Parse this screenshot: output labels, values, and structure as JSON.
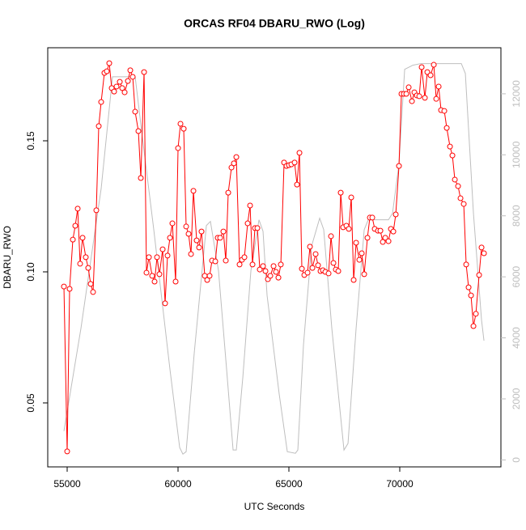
{
  "chart_data": {
    "type": "line",
    "title": "ORCAS RF04 DBARU_RWO (Log)",
    "x_label": "UTC Seconds",
    "y_label": "DBARU_RWO",
    "xlim": [
      54124,
      74562
    ],
    "xticks": [
      55000,
      60000,
      65000,
      70000
    ],
    "ylim": [
      0.0256,
      0.1855
    ],
    "yticks": [
      {
        "value": 0.05,
        "label": "0.05"
      },
      {
        "value": 0.1,
        "label": "0.10"
      },
      {
        "value": 0.15,
        "label": "0.15"
      }
    ],
    "y2lim": [
      -229,
      13509
    ],
    "y2ticks": [
      0,
      2000,
      4000,
      6000,
      8000,
      10000,
      12000
    ],
    "y2_color": "#bebebe",
    "series": [
      {
        "color": "#ff0000",
        "markers": true,
        "x": [
          54854,
          55000,
          55110,
          55256,
          55365,
          55475,
          55584,
          55694,
          55840,
          55949,
          56059,
          56168,
          56314,
          56424,
          56533,
          56679,
          56789,
          56898,
          57008,
          57117,
          57227,
          57373,
          57482,
          57592,
          57738,
          57847,
          57957,
          58066,
          58212,
          58322,
          58468,
          58577,
          58687,
          58833,
          58942,
          59052,
          59161,
          59307,
          59417,
          59526,
          59636,
          59745,
          59891,
          60001,
          60110,
          60256,
          60366,
          60475,
          60585,
          60694,
          60840,
          60950,
          61059,
          61205,
          61315,
          61424,
          61534,
          61680,
          61789,
          61899,
          62045,
          62154,
          62264,
          62410,
          62519,
          62629,
          62775,
          62884,
          62994,
          63140,
          63249,
          63359,
          63468,
          63578,
          63687,
          63833,
          63943,
          64052,
          64162,
          64308,
          64417,
          64527,
          64636,
          64782,
          64892,
          65001,
          65111,
          65257,
          65366,
          65476,
          65585,
          65695,
          65841,
          65950,
          66060,
          66206,
          66315,
          66425,
          66534,
          66644,
          66790,
          66899,
          67009,
          67118,
          67228,
          67337,
          67447,
          67593,
          67702,
          67812,
          67921,
          68031,
          68177,
          68286,
          68396,
          68542,
          68651,
          68761,
          68870,
          69016,
          69126,
          69235,
          69345,
          69491,
          69600,
          69710,
          69819,
          69965,
          70075,
          70184,
          70294,
          70403,
          70549,
          70659,
          70768,
          70878,
          70987,
          71133,
          71243,
          71389,
          71535,
          71644,
          71754,
          71863,
          72009,
          72119,
          72265,
          72374,
          72484,
          72630,
          72739,
          72885,
          72995,
          73104,
          73214,
          73323,
          73433,
          73579,
          73688,
          73798
        ],
        "values": [
          0.0944,
          0.0315,
          0.0935,
          0.1123,
          0.1176,
          0.1241,
          0.1031,
          0.113,
          0.1056,
          0.1015,
          0.0954,
          0.0923,
          0.1235,
          0.1556,
          0.1648,
          0.1759,
          0.1765,
          0.1796,
          0.1701,
          0.1688,
          0.1707,
          0.1725,
          0.1701,
          0.1685,
          0.1728,
          0.1769,
          0.1744,
          0.1611,
          0.1537,
          0.1358,
          0.1762,
          0.0997,
          0.1056,
          0.0985,
          0.0963,
          0.1056,
          0.0991,
          0.1086,
          0.088,
          0.1062,
          0.113,
          0.1185,
          0.0963,
          0.1472,
          0.1565,
          0.1546,
          0.1173,
          0.1145,
          0.1068,
          0.1309,
          0.112,
          0.1093,
          0.1154,
          0.0985,
          0.0969,
          0.0985,
          0.1043,
          0.104,
          0.113,
          0.113,
          0.1154,
          0.1043,
          0.1302,
          0.1398,
          0.1414,
          0.1438,
          0.1028,
          0.1046,
          0.1056,
          0.1185,
          0.1253,
          0.1028,
          0.1167,
          0.1167,
          0.1009,
          0.1022,
          0.1003,
          0.0972,
          0.0985,
          0.1022,
          0.1,
          0.0978,
          0.1028,
          0.1417,
          0.1404,
          0.1407,
          0.141,
          0.1417,
          0.1333,
          0.1454,
          0.1012,
          0.0988,
          0.0997,
          0.1096,
          0.1015,
          0.1068,
          0.1025,
          0.1003,
          0.1006,
          0.1,
          0.0994,
          0.1136,
          0.1034,
          0.1009,
          0.1003,
          0.1302,
          0.117,
          0.1176,
          0.1164,
          0.1284,
          0.0969,
          0.1111,
          0.1046,
          0.1071,
          0.0991,
          0.113,
          0.1207,
          0.1207,
          0.1164,
          0.1157,
          0.1157,
          0.1114,
          0.113,
          0.1117,
          0.1164,
          0.1154,
          0.1219,
          0.1404,
          0.1679,
          0.1679,
          0.1679,
          0.1704,
          0.1651,
          0.1685,
          0.1673,
          0.167,
          0.1781,
          0.1664,
          0.1762,
          0.175,
          0.179,
          0.166,
          0.1707,
          0.1617,
          0.1614,
          0.1549,
          0.1478,
          0.1444,
          0.1352,
          0.1327,
          0.1281,
          0.1259,
          0.1028,
          0.0941,
          0.091,
          0.0793,
          0.084,
          0.0988,
          0.1093,
          0.1071
        ]
      },
      {
        "color": "#bebebe",
        "axis": "y2",
        "markers": false,
        "x": [
          54854,
          55621,
          56533,
          57045,
          58066,
          58358,
          58906,
          59636,
          60074,
          60220,
          60366,
          60731,
          61278,
          61461,
          61826,
          62191,
          62483,
          62629,
          62921,
          63286,
          63651,
          63833,
          64016,
          64563,
          64928,
          65293,
          65403,
          65658,
          66023,
          66388,
          66571,
          66936,
          67484,
          67666,
          68031,
          68396,
          68578,
          69491,
          69674,
          69965,
          70221,
          70586,
          70951,
          72776,
          72958,
          73323,
          73688,
          73798
        ],
        "values": [
          943,
          4312,
          8894,
          12559,
          12559,
          10780,
          7546,
          2965,
          404,
          189,
          270,
          3504,
          7681,
          7816,
          6199,
          2965,
          323,
          323,
          2695,
          6199,
          7869,
          7492,
          5390,
          2156,
          270,
          216,
          323,
          3773,
          7007,
          7923,
          7546,
          4312,
          323,
          539,
          4312,
          7546,
          7869,
          7869,
          8085,
          9702,
          12801,
          12936,
          12990,
          12990,
          12667,
          8085,
          4582,
          3908
        ]
      }
    ]
  }
}
